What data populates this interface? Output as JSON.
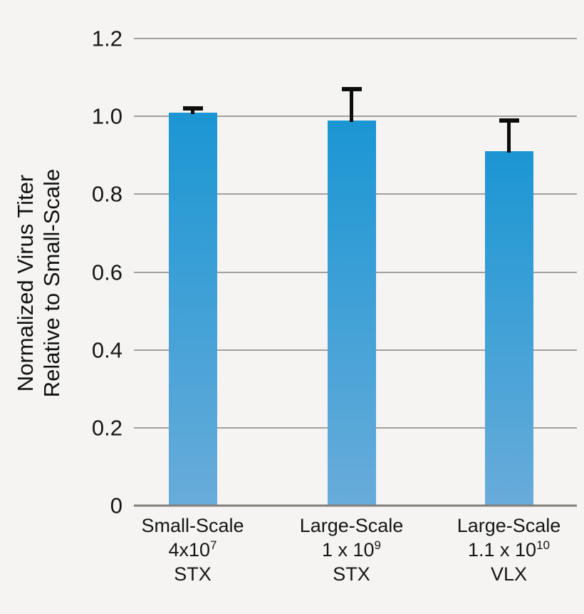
{
  "chart_data": {
    "type": "bar",
    "title": "",
    "ylabel_lines": [
      "Normalized Virus Titer",
      "Relative to Small-Scale"
    ],
    "ylim": [
      0,
      1.2
    ],
    "grid": true,
    "y_ticks": [
      0,
      0.2,
      0.4,
      0.6,
      0.8,
      1.0,
      1.2
    ],
    "y_tick_labels": [
      "0",
      "0.2",
      "0.4",
      "0.6",
      "0.8",
      "1.0",
      "1.2"
    ],
    "categories": [
      {
        "scale": "Small-Scale",
        "titer_base": "4x10",
        "titer_exp": "7",
        "vector": "STX"
      },
      {
        "scale": "Large-Scale",
        "titer_base": "1 x 10",
        "titer_exp": "9",
        "vector": "STX"
      },
      {
        "scale": "Large-Scale",
        "titer_base": "1.1 x 10",
        "titer_exp": "10",
        "vector": "VLX"
      }
    ],
    "values": [
      1.01,
      0.99,
      0.91
    ],
    "errors_plus": [
      0.01,
      0.08,
      0.08
    ],
    "colors": {
      "bar_gradient_top": "#1b96d3",
      "bar_gradient_bottom": "#68acda",
      "error_bar": "#0d0d0d",
      "gridline": "#a3a09b",
      "baseline": "#827e79",
      "background": "#f5f4f3",
      "text": "#161616"
    },
    "legend": null
  }
}
